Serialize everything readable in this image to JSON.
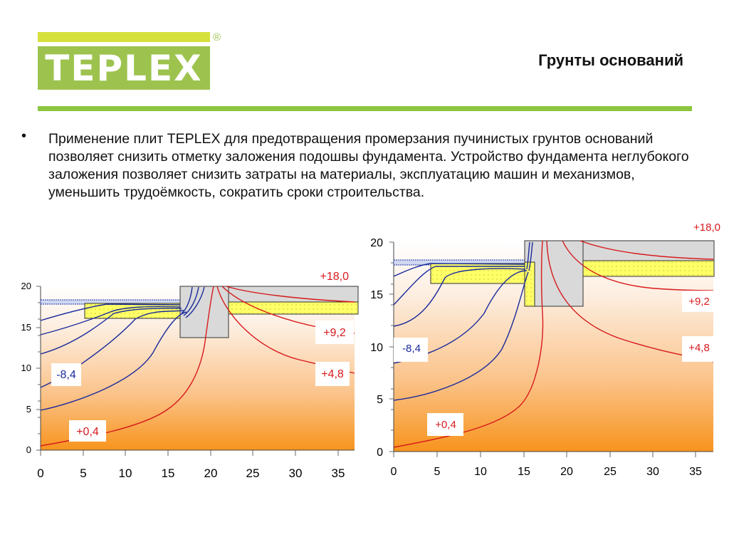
{
  "logo": {
    "text": "TEPLEX",
    "reg": "®"
  },
  "title": "Грунты оснований",
  "bullet": "•",
  "paragraph": "Применение плит TEPLEX  для предотвращения промерзания пучинистых грунтов оснований позволяет снизить отметку заложения подошвы фундамента. Устройство фундамента неглубокого заложения позволяет снизить затраты на материалы, эксплуатацию машин и механизмов, уменьшить трудоёмкость, сократить сроки строительства.",
  "colors": {
    "accent_green": "#8cc63f",
    "logo_green": "#9dc34e",
    "logo_yellow": "#d6e03a",
    "isotherm_red": "#d7191c",
    "isotherm_blue": "#1a2a9c",
    "insulation": "#ffff66"
  },
  "chart_data": [
    {
      "type": "contour",
      "x_ticks": [
        "0",
        "5",
        "10",
        "15",
        "20",
        "25",
        "30",
        "35"
      ],
      "y_ticks": [
        "20",
        "15",
        "10",
        "5",
        "0"
      ],
      "xlim": [
        0,
        37
      ],
      "ylim": [
        0,
        20
      ],
      "labels": {
        "plus18": "+18,0",
        "plus9_2": "+9,2",
        "plus4_8": "+4,8",
        "plus0_4": "+0,4",
        "minus8_4": "-8,4"
      }
    },
    {
      "type": "contour",
      "x_ticks": [
        "0",
        "5",
        "10",
        "15",
        "20",
        "25",
        "30",
        "35"
      ],
      "y_ticks": [
        "20",
        "15",
        "10",
        "5",
        "0"
      ],
      "xlim": [
        0,
        37
      ],
      "ylim": [
        0,
        20
      ],
      "labels": {
        "plus18": "+18,0",
        "plus9_2": "+9,2",
        "plus4_8": "+4,8",
        "plus0_4": "+0,4",
        "minus8_4": "-8,4"
      }
    }
  ]
}
